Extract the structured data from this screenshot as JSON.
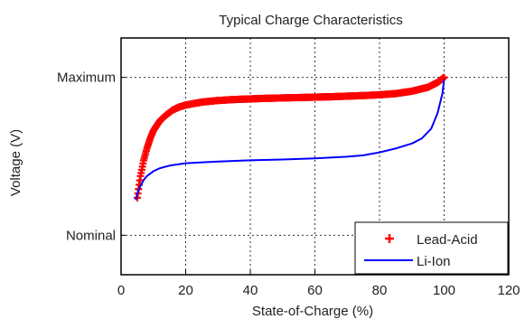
{
  "chart_data": {
    "type": "line",
    "title": "Typical Charge Characteristics",
    "xlabel": "State-of-Charge (%)",
    "ylabel": "Voltage (V)",
    "xlim": [
      0,
      120
    ],
    "ylim": [
      0,
      1.2
    ],
    "x_ticks": [
      0,
      20,
      40,
      60,
      80,
      100,
      120
    ],
    "y_ticks": [
      {
        "value": 0.2,
        "label": "Nominal"
      },
      {
        "value": 1.0,
        "label": "Maximum"
      }
    ],
    "grid": true,
    "legend_position": "bottom-right",
    "series": [
      {
        "name": "Lead-Acid",
        "color": "#ff0000",
        "marker": "plus",
        "points": [
          [
            5,
            0.39
          ],
          [
            6,
            0.5
          ],
          [
            7,
            0.58
          ],
          [
            8,
            0.64
          ],
          [
            9,
            0.69
          ],
          [
            10,
            0.73
          ],
          [
            12,
            0.78
          ],
          [
            14,
            0.81
          ],
          [
            16,
            0.835
          ],
          [
            18,
            0.85
          ],
          [
            20,
            0.86
          ],
          [
            25,
            0.875
          ],
          [
            30,
            0.883
          ],
          [
            35,
            0.888
          ],
          [
            40,
            0.891
          ],
          [
            45,
            0.894
          ],
          [
            50,
            0.896
          ],
          [
            55,
            0.898
          ],
          [
            60,
            0.9
          ],
          [
            65,
            0.902
          ],
          [
            70,
            0.905
          ],
          [
            75,
            0.908
          ],
          [
            80,
            0.912
          ],
          [
            85,
            0.918
          ],
          [
            90,
            0.93
          ],
          [
            95,
            0.95
          ],
          [
            98,
            0.975
          ],
          [
            100,
            1.0
          ]
        ]
      },
      {
        "name": "Li-Ion",
        "color": "#0000ff",
        "marker": "none",
        "points": [
          [
            4.5,
            0.38
          ],
          [
            5,
            0.41
          ],
          [
            6,
            0.45
          ],
          [
            7,
            0.48
          ],
          [
            8,
            0.5
          ],
          [
            10,
            0.525
          ],
          [
            12,
            0.54
          ],
          [
            15,
            0.553
          ],
          [
            20,
            0.565
          ],
          [
            30,
            0.574
          ],
          [
            40,
            0.58
          ],
          [
            50,
            0.584
          ],
          [
            60,
            0.59
          ],
          [
            70,
            0.598
          ],
          [
            75,
            0.605
          ],
          [
            80,
            0.62
          ],
          [
            85,
            0.64
          ],
          [
            90,
            0.665
          ],
          [
            93,
            0.69
          ],
          [
            96,
            0.74
          ],
          [
            98,
            0.82
          ],
          [
            99.5,
            0.92
          ],
          [
            100,
            0.99
          ]
        ]
      }
    ]
  }
}
